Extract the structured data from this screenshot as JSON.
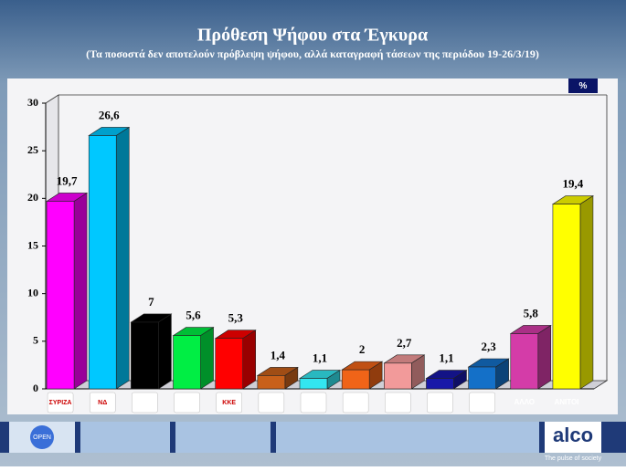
{
  "chart_data": {
    "type": "bar3d",
    "title": "Πρόθεση Ψήφου στα Έγκυρα",
    "subtitle": "(Τα ποσοστά δεν αποτελούν πρόβλεψη ψήφου, αλλά καταγραφή τάσεων της περιόδου 19-26/3/19)",
    "unit": "%",
    "categories": [
      "ΣΥΡΙΖΑ",
      "ΝΔ",
      null,
      null,
      "ΚΚΕ",
      null,
      null,
      null,
      null,
      null,
      null,
      "ΑΛΛΟ",
      "ΑΝΙΤΟΙ"
    ],
    "values": [
      19.7,
      26.6,
      7,
      5.6,
      5.3,
      1.4,
      1.1,
      2,
      2.7,
      1.1,
      2.3,
      5.8,
      19.4
    ],
    "value_labels": [
      "19,7",
      "26,6",
      "7",
      "5,6",
      "5,3",
      "1,4",
      "1,1",
      "2",
      "2,7",
      "1,1",
      "2,3",
      "5,8",
      "19,4"
    ],
    "colors": [
      "#ff00ff",
      "#00c8ff",
      "#000000",
      "#00ee44",
      "#ff0000",
      "#c8601a",
      "#33e6f0",
      "#f06418",
      "#f29a9a",
      "#1818a8",
      "#1470c8",
      "#d43ca8",
      "#ffff00"
    ],
    "ylim": [
      0,
      30
    ],
    "yticks": [
      0,
      5,
      10,
      15,
      20,
      25,
      30
    ]
  },
  "footer": {
    "brand": "alco",
    "tagline": "The pulse of society",
    "channel": "OPEN"
  }
}
